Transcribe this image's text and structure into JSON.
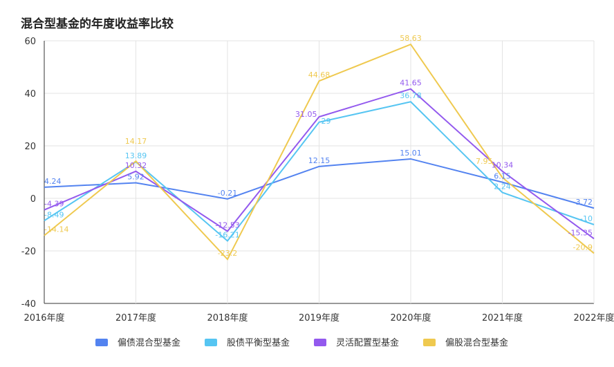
{
  "chart_data": {
    "type": "line",
    "title": "混合型基金的年度收益率比较",
    "categories": [
      "2016年度",
      "2017年度",
      "2018年度",
      "2019年度",
      "2020年度",
      "2021年度",
      "2022年度"
    ],
    "ylim": [
      -40,
      60
    ],
    "yticks": [
      -40,
      -20,
      0,
      20,
      40,
      60
    ],
    "grid": true,
    "legend_position": "bottom",
    "series": [
      {
        "name": "偏债混合型基金",
        "color": "#5383F0",
        "values": [
          4.24,
          5.92,
          -0.21,
          12.15,
          15.01,
          6.15,
          -3.72
        ]
      },
      {
        "name": "股债平衡型基金",
        "color": "#56C5F2",
        "values": [
          -8.49,
          13.89,
          -16.21,
          29,
          36.78,
          2.24,
          -10
        ]
      },
      {
        "name": "灵活配置型基金",
        "color": "#9359EE",
        "values": [
          -4.39,
          10.32,
          -12.53,
          31.05,
          41.65,
          10.34,
          -15.35
        ]
      },
      {
        "name": "偏股混合型基金",
        "color": "#EFC94F",
        "values": [
          -14.14,
          14.17,
          -23.2,
          44.68,
          58.63,
          7.95,
          -20.9
        ]
      }
    ]
  }
}
